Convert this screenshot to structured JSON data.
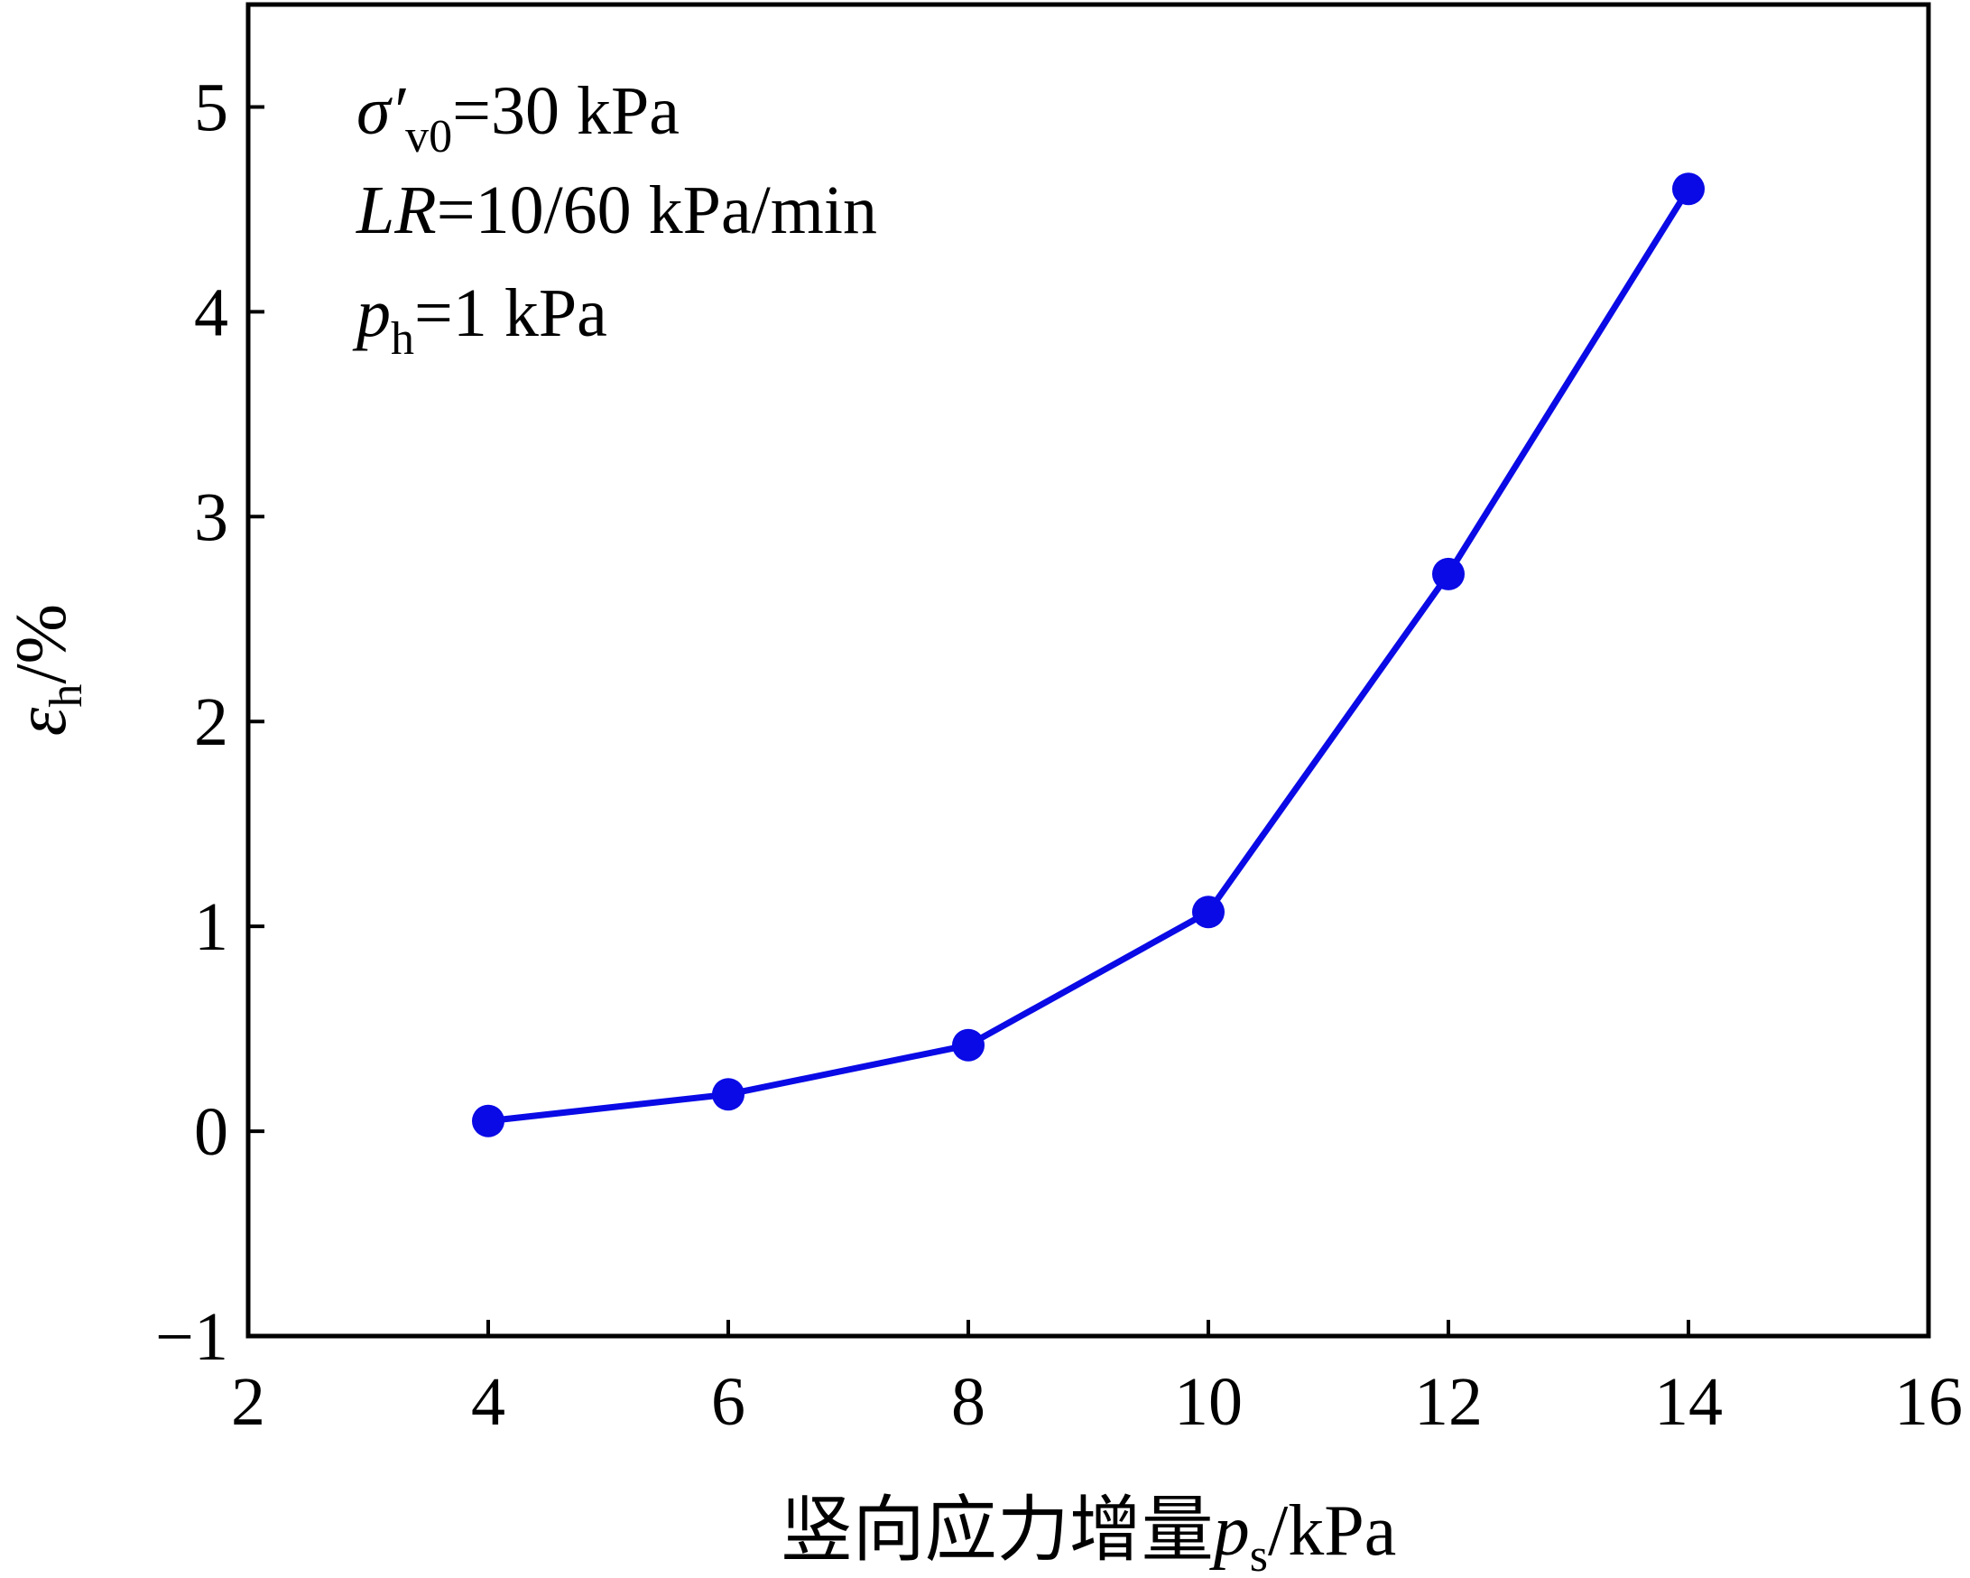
{
  "chart_data": {
    "type": "line",
    "x": [
      4,
      6,
      8,
      10,
      12,
      14
    ],
    "series": [
      {
        "values": [
          0.05,
          0.18,
          0.42,
          1.07,
          2.72,
          4.6
        ],
        "color": "#0a0ae6"
      }
    ],
    "xlim": [
      2,
      16
    ],
    "ylim": [
      -1,
      5.5
    ],
    "x_ticks": [
      2,
      4,
      6,
      8,
      10,
      12,
      14,
      16
    ],
    "y_ticks": [
      -1,
      0,
      1,
      2,
      3,
      4,
      5
    ],
    "x_tick_labels": [
      "2",
      "4",
      "6",
      "8",
      "10",
      "12",
      "14",
      "16"
    ],
    "y_tick_labels": [
      "−1",
      "0",
      "1",
      "2",
      "3",
      "4",
      "5"
    ],
    "xlabel": {
      "main": "竖向应力增量",
      "symbol": "p",
      "subscript": "s",
      "unit": "/kPa"
    },
    "ylabel": {
      "symbol": "ε",
      "subscript": "h",
      "unit": "/%"
    },
    "annotations": [
      {
        "symbol": "σ′",
        "subscript": "v0",
        "text": "=30 kPa"
      },
      {
        "symbol": "LR",
        "subscript": "",
        "text": "=10/60 kPa/min"
      },
      {
        "symbol": "p",
        "subscript": "h",
        "text": "=1 kPa"
      }
    ],
    "grid": false,
    "legend": "none"
  }
}
